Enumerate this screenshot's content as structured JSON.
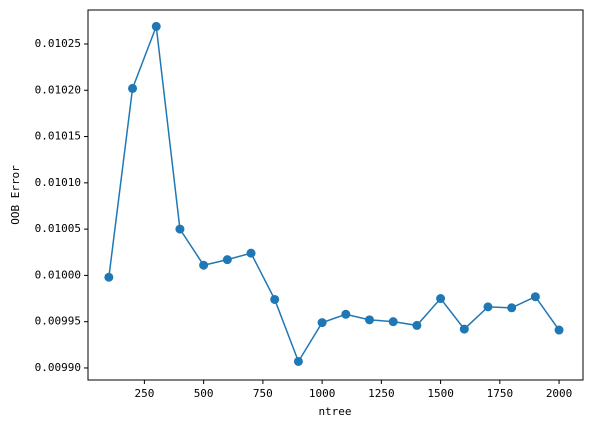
{
  "chart_data": {
    "type": "line",
    "x_label": "ntree",
    "y_label": "OOB Error",
    "x": [
      100,
      200,
      300,
      400,
      500,
      600,
      700,
      800,
      900,
      1000,
      1100,
      1200,
      1300,
      1400,
      1500,
      1600,
      1700,
      1800,
      1900,
      2000
    ],
    "series": [
      {
        "color": "#1f77b4",
        "values": [
          0.009998,
          0.010202,
          0.010269,
          0.01005,
          0.010011,
          0.010017,
          0.010024,
          0.009974,
          0.009907,
          0.009949,
          0.009958,
          0.009952,
          0.00995,
          0.009946,
          0.009975,
          0.009942,
          0.009966,
          0.009965,
          0.009977,
          0.009941
        ]
      }
    ],
    "xlim": [
      12,
      2101
    ],
    "ylim": [
      0.009887,
      0.0102867
    ],
    "xticks": [
      250,
      500,
      750,
      1000,
      1250,
      1500,
      1750,
      2000
    ],
    "yticks": [
      {
        "value": 0.0099,
        "label": "0.00990"
      },
      0.00995,
      {
        "value": 0.01,
        "label": "0.01000"
      },
      0.01005,
      {
        "value": 0.0101,
        "label": "0.01010"
      },
      0.01015,
      {
        "value": 0.0102,
        "label": "0.01020"
      },
      0.01025
    ]
  }
}
